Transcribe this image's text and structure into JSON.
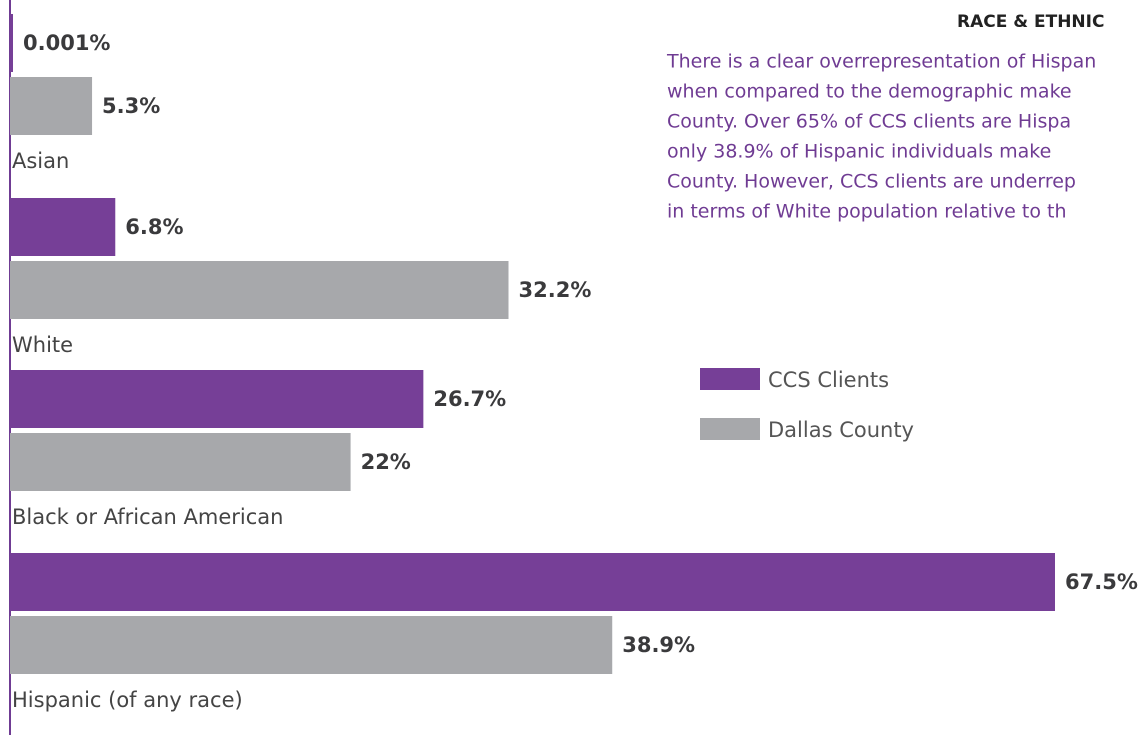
{
  "chart_data": {
    "type": "bar",
    "orientation": "horizontal",
    "title": "RACE & ETHNIC",
    "text_lines": [
      "There is a clear overrepresentation of Hispan",
      "when compared to the demographic make",
      "County. Over 65% of CCS clients are Hispa",
      "only 38.9% of Hispanic individuals make",
      "County.  However, CCS clients are underrep",
      "in terms of White population relative to th"
    ],
    "categories": [
      "Asian",
      "White",
      "Black or African American",
      "Hispanic (of any race)"
    ],
    "series": [
      {
        "name": "CCS Clients",
        "color": "#763f97",
        "values": [
          0.001,
          6.8,
          26.7,
          67.5
        ],
        "value_labels": [
          "0.001%",
          "6.8%",
          "26.7%",
          "67.5%"
        ]
      },
      {
        "name": "Dallas County",
        "color": "#a7a8ab",
        "values": [
          5.3,
          32.2,
          22,
          38.9
        ],
        "value_labels": [
          "5.3%",
          "32.2%",
          "22%",
          "38.9%"
        ]
      }
    ]
  }
}
